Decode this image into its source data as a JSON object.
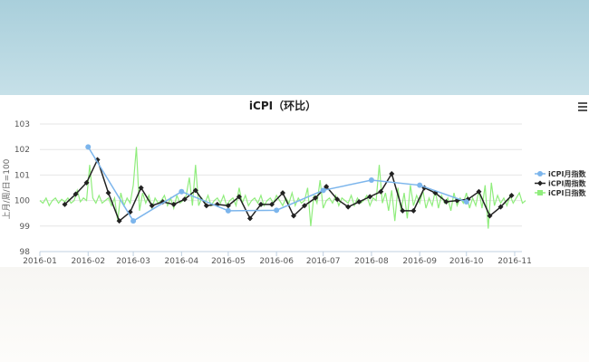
{
  "chart_data": {
    "type": "line",
    "title": "iCPI（环比）",
    "ylabel": "上月/周/日=100",
    "ylim": [
      98,
      103
    ],
    "yticks": [
      "98",
      "99",
      "100",
      "101",
      "102",
      "103"
    ],
    "xticks": [
      "2016-01",
      "2016-02",
      "2016-03",
      "2016-04",
      "2016-05",
      "2016-06",
      "2016-07",
      "2016-08",
      "2016-09",
      "2016-10",
      "2016-11"
    ],
    "grid": true,
    "legend": "right",
    "series": [
      {
        "name": "iCPI月指数",
        "color": "#7cb5ec",
        "marker": "circle",
        "x": [
          "2016-02-01",
          "2016-03-01",
          "2016-04-01",
          "2016-05-01",
          "2016-06-01",
          "2016-07-01",
          "2016-08-01",
          "2016-09-01",
          "2016-10-01"
        ],
        "values": [
          102.1,
          99.2,
          100.35,
          99.6,
          99.62,
          100.4,
          100.8,
          100.6,
          99.95
        ]
      },
      {
        "name": "iCPI周指数",
        "color": "#222222",
        "marker": "diamond",
        "start": "2016-01-17",
        "step_days": 7,
        "values": [
          99.85,
          100.25,
          100.7,
          101.6,
          100.3,
          99.2,
          99.55,
          100.5,
          99.8,
          99.95,
          99.85,
          100.05,
          100.4,
          99.8,
          99.85,
          99.8,
          100.15,
          99.3,
          99.85,
          99.85,
          100.3,
          99.4,
          99.8,
          100.1,
          100.55,
          100.05,
          99.75,
          99.95,
          100.15,
          100.35,
          101.05,
          99.6,
          99.6,
          100.5,
          100.3,
          99.95,
          100.0,
          100.05,
          100.35,
          99.4,
          99.75,
          100.2
        ]
      },
      {
        "name": "iCPI日指数",
        "color": "#90ed7d",
        "marker": "square",
        "start": "2016-01-01",
        "step_days": 2,
        "values": [
          100.0,
          99.9,
          100.1,
          99.8,
          100.0,
          100.1,
          99.9,
          100.05,
          99.95,
          100.1,
          99.9,
          100.0,
          100.4,
          99.95,
          100.1,
          100.0,
          101.4,
          100.1,
          99.9,
          100.2,
          99.9,
          100.0,
          100.1,
          99.8,
          100.1,
          99.2,
          100.3,
          99.8,
          100.1,
          99.9,
          100.6,
          102.1,
          99.6,
          100.3,
          99.9,
          100.2,
          99.7,
          100.1,
          99.9,
          100.0,
          100.2,
          99.8,
          100.1,
          99.7,
          100.2,
          99.9,
          100.0,
          100.2,
          100.9,
          99.8,
          101.4,
          99.8,
          100.1,
          99.9,
          100.2,
          99.8,
          100.0,
          100.1,
          99.9,
          100.2,
          99.8,
          100.0,
          100.1,
          99.8,
          100.5,
          99.9,
          100.2,
          99.8,
          100.0,
          100.1,
          99.9,
          100.2,
          99.8,
          100.0,
          100.1,
          99.9,
          100.2,
          100.0,
          99.8,
          100.1,
          99.9,
          100.3,
          99.8,
          100.1,
          99.9,
          100.0,
          100.5,
          99.0,
          100.2,
          99.9,
          100.8,
          99.7,
          100.0,
          100.1,
          99.9,
          100.2,
          99.8,
          100.1,
          100.0,
          99.9,
          100.2,
          99.8,
          100.1,
          99.9,
          100.0,
          100.2,
          99.8,
          100.1,
          100.0,
          101.4,
          99.9,
          100.3,
          99.6,
          100.4,
          99.2,
          100.5,
          99.6,
          100.3,
          99.3,
          100.6,
          99.8,
          100.2,
          99.9,
          100.4,
          99.7,
          100.1,
          99.8,
          100.4,
          99.7,
          100.2,
          99.9,
          100.1,
          99.6,
          100.3,
          99.8,
          100.1,
          99.9,
          100.3,
          99.7,
          100.1,
          99.8,
          100.4,
          99.7,
          100.6,
          98.9,
          100.7,
          99.8,
          100.2,
          99.9,
          100.1,
          99.8,
          100.2,
          99.9,
          100.1,
          100.3,
          99.9,
          100.0
        ]
      }
    ]
  },
  "menu_icon": "hamburger-menu-icon"
}
